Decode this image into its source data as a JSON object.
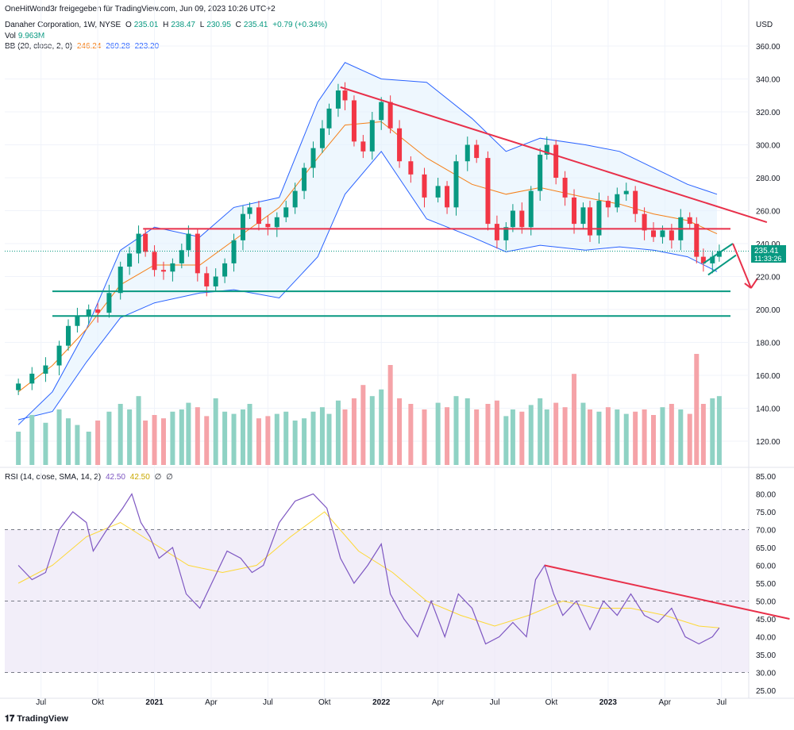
{
  "meta": {
    "shared_by": "OneHitWond3r freigegeben für TradingView.com, Jun 09, 2023 10:26 UTC+2",
    "symbol": "Danaher Corporation, 1W, NYSE",
    "open_label": "O",
    "open": "235.01",
    "high_label": "H",
    "high": "238.47",
    "low_label": "L",
    "low": "230.95",
    "close_label": "C",
    "close": "235.41",
    "change": "+0.79 (+0.34%)",
    "vol_label": "Vol",
    "vol": "9.963M",
    "bb_label": "BB (20, close, 2, 0)",
    "bb_basis": "246.24",
    "bb_upper": "269.28",
    "bb_lower": "223.20",
    "rsi_label": "RSI (14, close, SMA, 14, 2)",
    "rsi_value": "42.50",
    "rsi_sma": "42.50",
    "rsi_extra1": "∅",
    "rsi_extra2": "∅",
    "currency": "USD",
    "price_tag": "235.41",
    "countdown": "11:33:26",
    "brand": "TradingView"
  },
  "colors": {
    "up": "#089981",
    "down": "#f23645",
    "up_light": "#8fd2c4",
    "down_light": "#f5a3a8",
    "bb_band": "#2962ff",
    "bb_basis": "#f57f17",
    "bb_fill": "#e3f2fd",
    "drawing_red": "#e8304a",
    "drawing_green": "#089981",
    "rsi_line": "#7e57c2",
    "rsi_sma": "#fdd835",
    "rsi_bg": "#ede7f6"
  },
  "chart_data": [
    {
      "type": "candlestick",
      "timeframe": "1W",
      "x_tick_labels": [
        "Jul",
        "Okt",
        "2021",
        "Apr",
        "Jul",
        "Okt",
        "2022",
        "Apr",
        "Jul",
        "Okt",
        "2023",
        "Apr",
        "Jul"
      ],
      "y_tick_labels": [
        "360.00",
        "340.00",
        "320.00",
        "300.00",
        "280.00",
        "260.00",
        "240.00",
        "220.00",
        "200.00",
        "180.00",
        "160.00",
        "140.00",
        "120.00"
      ],
      "ylim": [
        105,
        370
      ],
      "close_series": [
        [
          2020.4,
          155
        ],
        [
          2020.46,
          161
        ],
        [
          2020.52,
          166
        ],
        [
          2020.58,
          178
        ],
        [
          2020.62,
          190
        ],
        [
          2020.66,
          196
        ],
        [
          2020.71,
          200
        ],
        [
          2020.75,
          198
        ],
        [
          2020.8,
          210
        ],
        [
          2020.85,
          226
        ],
        [
          2020.89,
          234
        ],
        [
          2020.93,
          246
        ],
        [
          2020.96,
          235
        ],
        [
          2021.0,
          224
        ],
        [
          2021.04,
          223
        ],
        [
          2021.08,
          228
        ],
        [
          2021.12,
          236
        ],
        [
          2021.15,
          246
        ],
        [
          2021.19,
          222
        ],
        [
          2021.23,
          214
        ],
        [
          2021.27,
          220
        ],
        [
          2021.31,
          228
        ],
        [
          2021.35,
          242
        ],
        [
          2021.39,
          258
        ],
        [
          2021.42,
          262
        ],
        [
          2021.46,
          252
        ],
        [
          2021.5,
          250
        ],
        [
          2021.54,
          256
        ],
        [
          2021.58,
          262
        ],
        [
          2021.62,
          272
        ],
        [
          2021.66,
          286
        ],
        [
          2021.7,
          298
        ],
        [
          2021.74,
          310
        ],
        [
          2021.77,
          322
        ],
        [
          2021.81,
          333
        ],
        [
          2021.84,
          327
        ],
        [
          2021.88,
          302
        ],
        [
          2021.92,
          296
        ],
        [
          2021.96,
          315
        ],
        [
          2022.0,
          326
        ],
        [
          2022.04,
          310
        ],
        [
          2022.08,
          290
        ],
        [
          2022.13,
          282
        ],
        [
          2022.19,
          268
        ],
        [
          2022.25,
          275
        ],
        [
          2022.29,
          262
        ],
        [
          2022.33,
          290
        ],
        [
          2022.38,
          300
        ],
        [
          2022.42,
          292
        ],
        [
          2022.47,
          252
        ],
        [
          2022.51,
          242
        ],
        [
          2022.55,
          250
        ],
        [
          2022.58,
          260
        ],
        [
          2022.62,
          250
        ],
        [
          2022.66,
          272
        ],
        [
          2022.7,
          294
        ],
        [
          2022.73,
          300
        ],
        [
          2022.77,
          280
        ],
        [
          2022.81,
          268
        ],
        [
          2022.85,
          252
        ],
        [
          2022.89,
          262
        ],
        [
          2022.92,
          245
        ],
        [
          2022.96,
          266
        ],
        [
          2023.0,
          262
        ],
        [
          2023.04,
          270
        ],
        [
          2023.08,
          272
        ],
        [
          2023.12,
          258
        ],
        [
          2023.16,
          248
        ],
        [
          2023.2,
          244
        ],
        [
          2023.24,
          248
        ],
        [
          2023.28,
          242
        ],
        [
          2023.32,
          256
        ],
        [
          2023.36,
          252
        ],
        [
          2023.39,
          232
        ],
        [
          2023.42,
          228
        ],
        [
          2023.46,
          232
        ],
        [
          2023.49,
          235.41
        ]
      ],
      "bollinger": {
        "upper": [
          [
            2020.4,
            130
          ],
          [
            2020.55,
            150
          ],
          [
            2020.7,
            188
          ],
          [
            2020.85,
            236
          ],
          [
            2021.0,
            250
          ],
          [
            2021.2,
            244
          ],
          [
            2021.35,
            262
          ],
          [
            2021.55,
            268
          ],
          [
            2021.72,
            326
          ],
          [
            2021.84,
            350
          ],
          [
            2022.0,
            340
          ],
          [
            2022.2,
            338
          ],
          [
            2022.4,
            316
          ],
          [
            2022.55,
            296
          ],
          [
            2022.7,
            304
          ],
          [
            2022.9,
            300
          ],
          [
            2023.05,
            296
          ],
          [
            2023.2,
            286
          ],
          [
            2023.35,
            276
          ],
          [
            2023.48,
            270
          ]
        ],
        "basis": [
          [
            2020.4,
            150
          ],
          [
            2020.55,
            166
          ],
          [
            2020.7,
            188
          ],
          [
            2020.85,
            215
          ],
          [
            2021.0,
            227
          ],
          [
            2021.2,
            227
          ],
          [
            2021.35,
            242
          ],
          [
            2021.55,
            262
          ],
          [
            2021.72,
            292
          ],
          [
            2021.84,
            312
          ],
          [
            2022.0,
            314
          ],
          [
            2022.2,
            292
          ],
          [
            2022.4,
            276
          ],
          [
            2022.55,
            270
          ],
          [
            2022.7,
            274
          ],
          [
            2022.9,
            268
          ],
          [
            2023.05,
            264
          ],
          [
            2023.2,
            258
          ],
          [
            2023.35,
            254
          ],
          [
            2023.48,
            246
          ]
        ],
        "lower": [
          [
            2020.4,
            133
          ],
          [
            2020.55,
            138
          ],
          [
            2020.7,
            168
          ],
          [
            2020.85,
            195
          ],
          [
            2021.0,
            204
          ],
          [
            2021.2,
            210
          ],
          [
            2021.35,
            212
          ],
          [
            2021.55,
            207
          ],
          [
            2021.72,
            232
          ],
          [
            2021.84,
            270
          ],
          [
            2022.0,
            296
          ],
          [
            2022.2,
            255
          ],
          [
            2022.4,
            244
          ],
          [
            2022.55,
            235
          ],
          [
            2022.7,
            239
          ],
          [
            2022.9,
            236
          ],
          [
            2023.05,
            238
          ],
          [
            2023.2,
            236
          ],
          [
            2023.35,
            232
          ],
          [
            2023.48,
            223
          ]
        ]
      },
      "volume_relative": [
        0.3,
        0.45,
        0.38,
        0.5,
        0.42,
        0.36,
        0.3,
        0.4,
        0.48,
        0.55,
        0.5,
        0.62,
        0.4,
        0.45,
        0.42,
        0.48,
        0.5,
        0.56,
        0.52,
        0.44,
        0.6,
        0.48,
        0.46,
        0.5,
        0.55,
        0.42,
        0.44,
        0.46,
        0.48,
        0.4,
        0.42,
        0.48,
        0.52,
        0.46,
        0.58,
        0.5,
        0.6,
        0.72,
        0.62,
        0.68,
        0.9,
        0.6,
        0.55,
        0.5,
        0.56,
        0.52,
        0.62,
        0.6,
        0.5,
        0.55,
        0.58,
        0.44,
        0.5,
        0.48,
        0.54,
        0.6,
        0.5,
        0.56,
        0.52,
        0.82,
        0.56,
        0.5,
        0.48,
        0.52,
        0.5,
        0.46,
        0.48,
        0.5,
        0.45,
        0.52,
        0.55,
        0.5,
        0.46,
        1.0,
        0.55,
        0.6,
        0.62
      ],
      "drawings": [
        {
          "type": "trendline",
          "color": "red",
          "from": [
            2021.82,
            335
          ],
          "to": [
            2023.7,
            253
          ]
        },
        {
          "type": "horizontal",
          "color": "red",
          "value": 249
        },
        {
          "type": "horizontal",
          "color": "green",
          "value": 211
        },
        {
          "type": "horizontal",
          "color": "green",
          "value": 196
        },
        {
          "type": "channel",
          "color": "green",
          "from": [
            2023.42,
            228
          ],
          "to": [
            2023.55,
            240
          ]
        },
        {
          "type": "arrow",
          "color": "red",
          "from": [
            2023.55,
            240
          ],
          "to": [
            2023.63,
            213
          ]
        }
      ]
    },
    {
      "type": "line",
      "name": "RSI (14, close, SMA, 14, 2)",
      "x_tick_labels": [
        "Jul",
        "Okt",
        "2021",
        "Apr",
        "Jul",
        "Okt",
        "2022",
        "Apr",
        "Jul",
        "Okt",
        "2023",
        "Apr",
        "Jul"
      ],
      "y_tick_labels": [
        "85.00",
        "80.00",
        "75.00",
        "70.00",
        "65.00",
        "60.00",
        "55.00",
        "50.00",
        "45.00",
        "40.00",
        "35.00",
        "30.00",
        "25.00"
      ],
      "ylim": [
        25,
        85
      ],
      "bands": {
        "upper": 70,
        "middle": 50,
        "lower": 30
      },
      "series": [
        {
          "name": "RSI",
          "values": [
            [
              2020.4,
              60
            ],
            [
              2020.46,
              56
            ],
            [
              2020.52,
              58
            ],
            [
              2020.58,
              70
            ],
            [
              2020.64,
              75
            ],
            [
              2020.7,
              72
            ],
            [
              2020.73,
              64
            ],
            [
              2020.79,
              70
            ],
            [
              2020.86,
              76
            ],
            [
              2020.9,
              80
            ],
            [
              2020.94,
              72
            ],
            [
              2020.98,
              68
            ],
            [
              2021.02,
              62
            ],
            [
              2021.08,
              65
            ],
            [
              2021.14,
              52
            ],
            [
              2021.2,
              48
            ],
            [
              2021.26,
              56
            ],
            [
              2021.32,
              64
            ],
            [
              2021.38,
              62
            ],
            [
              2021.43,
              58
            ],
            [
              2021.48,
              60
            ],
            [
              2021.55,
              72
            ],
            [
              2021.62,
              78
            ],
            [
              2021.7,
              80
            ],
            [
              2021.76,
              76
            ],
            [
              2021.82,
              62
            ],
            [
              2021.88,
              55
            ],
            [
              2021.94,
              60
            ],
            [
              2022.0,
              66
            ],
            [
              2022.04,
              52
            ],
            [
              2022.1,
              45
            ],
            [
              2022.16,
              40
            ],
            [
              2022.22,
              50
            ],
            [
              2022.28,
              40
            ],
            [
              2022.34,
              52
            ],
            [
              2022.4,
              48
            ],
            [
              2022.46,
              38
            ],
            [
              2022.52,
              40
            ],
            [
              2022.58,
              44
            ],
            [
              2022.64,
              40
            ],
            [
              2022.68,
              56
            ],
            [
              2022.72,
              60
            ],
            [
              2022.76,
              52
            ],
            [
              2022.8,
              46
            ],
            [
              2022.86,
              50
            ],
            [
              2022.92,
              42
            ],
            [
              2022.98,
              50
            ],
            [
              2023.04,
              46
            ],
            [
              2023.1,
              52
            ],
            [
              2023.16,
              46
            ],
            [
              2023.22,
              44
            ],
            [
              2023.28,
              48
            ],
            [
              2023.34,
              40
            ],
            [
              2023.4,
              38
            ],
            [
              2023.46,
              40
            ],
            [
              2023.49,
              42.5
            ]
          ]
        },
        {
          "name": "RSI SMA",
          "values": [
            [
              2020.4,
              55
            ],
            [
              2020.55,
              60
            ],
            [
              2020.7,
              68
            ],
            [
              2020.85,
              72
            ],
            [
              2021.0,
              66
            ],
            [
              2021.15,
              60
            ],
            [
              2021.3,
              58
            ],
            [
              2021.45,
              60
            ],
            [
              2021.6,
              68
            ],
            [
              2021.75,
              75
            ],
            [
              2021.9,
              64
            ],
            [
              2022.05,
              58
            ],
            [
              2022.2,
              50
            ],
            [
              2022.35,
              46
            ],
            [
              2022.5,
              43
            ],
            [
              2022.65,
              46
            ],
            [
              2022.8,
              50
            ],
            [
              2022.95,
              48
            ],
            [
              2023.1,
              48
            ],
            [
              2023.25,
              46
            ],
            [
              2023.4,
              43
            ],
            [
              2023.49,
              42.5
            ]
          ]
        }
      ],
      "drawings": [
        {
          "type": "trendline",
          "color": "red",
          "from": [
            2022.72,
            60
          ],
          "to": [
            2023.8,
            45
          ]
        }
      ]
    }
  ]
}
